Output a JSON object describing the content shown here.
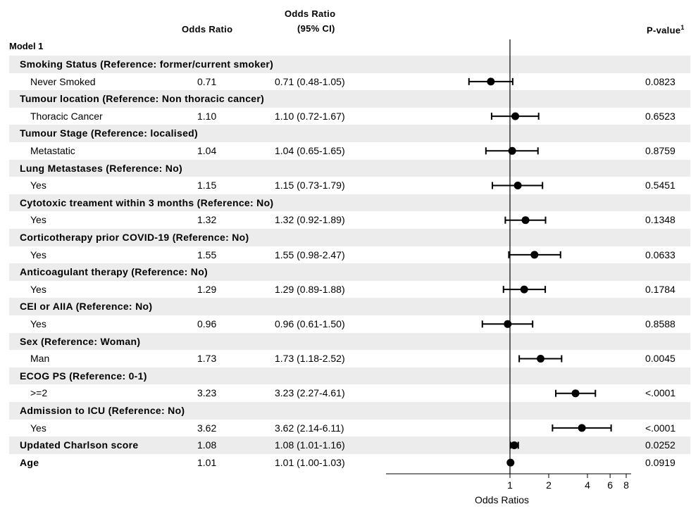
{
  "header": {
    "odds_ratio": "Odds Ratio",
    "ci_line1": "Odds Ratio",
    "ci_line2": "(95% CI)",
    "pvalue": "P-value",
    "pvalue_sup": "1"
  },
  "model_label": "Model 1",
  "chart_data": {
    "type": "forest",
    "xlabel": "Odds Ratios",
    "x_scale": "log2",
    "x_ticks": [
      "1",
      "2",
      "4",
      "6",
      "8"
    ],
    "reference_line": 1,
    "rows": [
      {
        "label": "Smoking Status  (Reference: former/current smoker)",
        "header": true
      },
      {
        "label": "Never Smoked",
        "or_text": "0.71",
        "ci_text": "0.71 (0.48-1.05)",
        "p": "0.0823",
        "or": 0.71,
        "lo": 0.48,
        "hi": 1.05
      },
      {
        "label": "Tumour location  (Reference: Non thoracic cancer)",
        "header": true
      },
      {
        "label": "Thoracic Cancer",
        "or_text": "1.10",
        "ci_text": "1.10 (0.72-1.67)",
        "p": "0.6523",
        "or": 1.1,
        "lo": 0.72,
        "hi": 1.67
      },
      {
        "label": "Tumour Stage  (Reference: localised)",
        "header": true
      },
      {
        "label": "Metastatic",
        "or_text": "1.04",
        "ci_text": "1.04 (0.65-1.65)",
        "p": "0.8759",
        "or": 1.04,
        "lo": 0.65,
        "hi": 1.65
      },
      {
        "label": "Lung Metastases  (Reference: No)",
        "header": true
      },
      {
        "label": "Yes",
        "or_text": "1.15",
        "ci_text": "1.15 (0.73-1.79)",
        "p": "0.5451",
        "or": 1.15,
        "lo": 0.73,
        "hi": 1.79
      },
      {
        "label": "Cytotoxic treament within 3 months    (Reference: No)",
        "header": true
      },
      {
        "label": "Yes",
        "or_text": "1.32",
        "ci_text": "1.32 (0.92-1.89)",
        "p": "0.1348",
        "or": 1.32,
        "lo": 0.92,
        "hi": 1.89
      },
      {
        "label": "Corticotherapy prior COVID-19 (Reference: No)",
        "header": true
      },
      {
        "label": "Yes",
        "or_text": "1.55",
        "ci_text": "1.55 (0.98-2.47)",
        "p": "0.0633",
        "or": 1.55,
        "lo": 0.98,
        "hi": 2.47
      },
      {
        "label": "Anticoagulant therapy    (Reference: No)",
        "header": true
      },
      {
        "label": "Yes",
        "or_text": "1.29",
        "ci_text": "1.29 (0.89-1.88)",
        "p": "0.1784",
        "or": 1.29,
        "lo": 0.89,
        "hi": 1.88
      },
      {
        "label": "CEI or AIIA  (Reference: No)",
        "header": true
      },
      {
        "label": "Yes",
        "or_text": "0.96",
        "ci_text": "0.96 (0.61-1.50)",
        "p": "0.8588",
        "or": 0.96,
        "lo": 0.61,
        "hi": 1.5
      },
      {
        "label": "Sex   (Reference: Woman)",
        "header": true
      },
      {
        "label": "Man",
        "or_text": "1.73",
        "ci_text": "1.73 (1.18-2.52)",
        "p": "0.0045",
        "or": 1.73,
        "lo": 1.18,
        "hi": 2.52
      },
      {
        "label": "ECOG PS  (Reference: 0-1)",
        "header": true
      },
      {
        "label": ">=2",
        "or_text": "3.23",
        "ci_text": "3.23 (2.27-4.61)",
        "p": "<.0001",
        "or": 3.23,
        "lo": 2.27,
        "hi": 4.61
      },
      {
        "label": "Admission to ICU  (Reference: No)",
        "header": true
      },
      {
        "label": "Yes",
        "or_text": "3.62",
        "ci_text": "3.62 (2.14-6.11)",
        "p": "<.0001",
        "or": 3.62,
        "lo": 2.14,
        "hi": 6.11
      },
      {
        "label": "Updated Charlson score",
        "bold": true,
        "or_text": "1.08",
        "ci_text": "1.08 (1.01-1.16)",
        "p": "0.0252",
        "or": 1.08,
        "lo": 1.01,
        "hi": 1.16
      },
      {
        "label": "Age",
        "bold": true,
        "or_text": "1.01",
        "ci_text": "1.01 (1.00-1.03)",
        "p": "0.0919",
        "or": 1.01,
        "lo": 1.0,
        "hi": 1.03
      }
    ]
  }
}
